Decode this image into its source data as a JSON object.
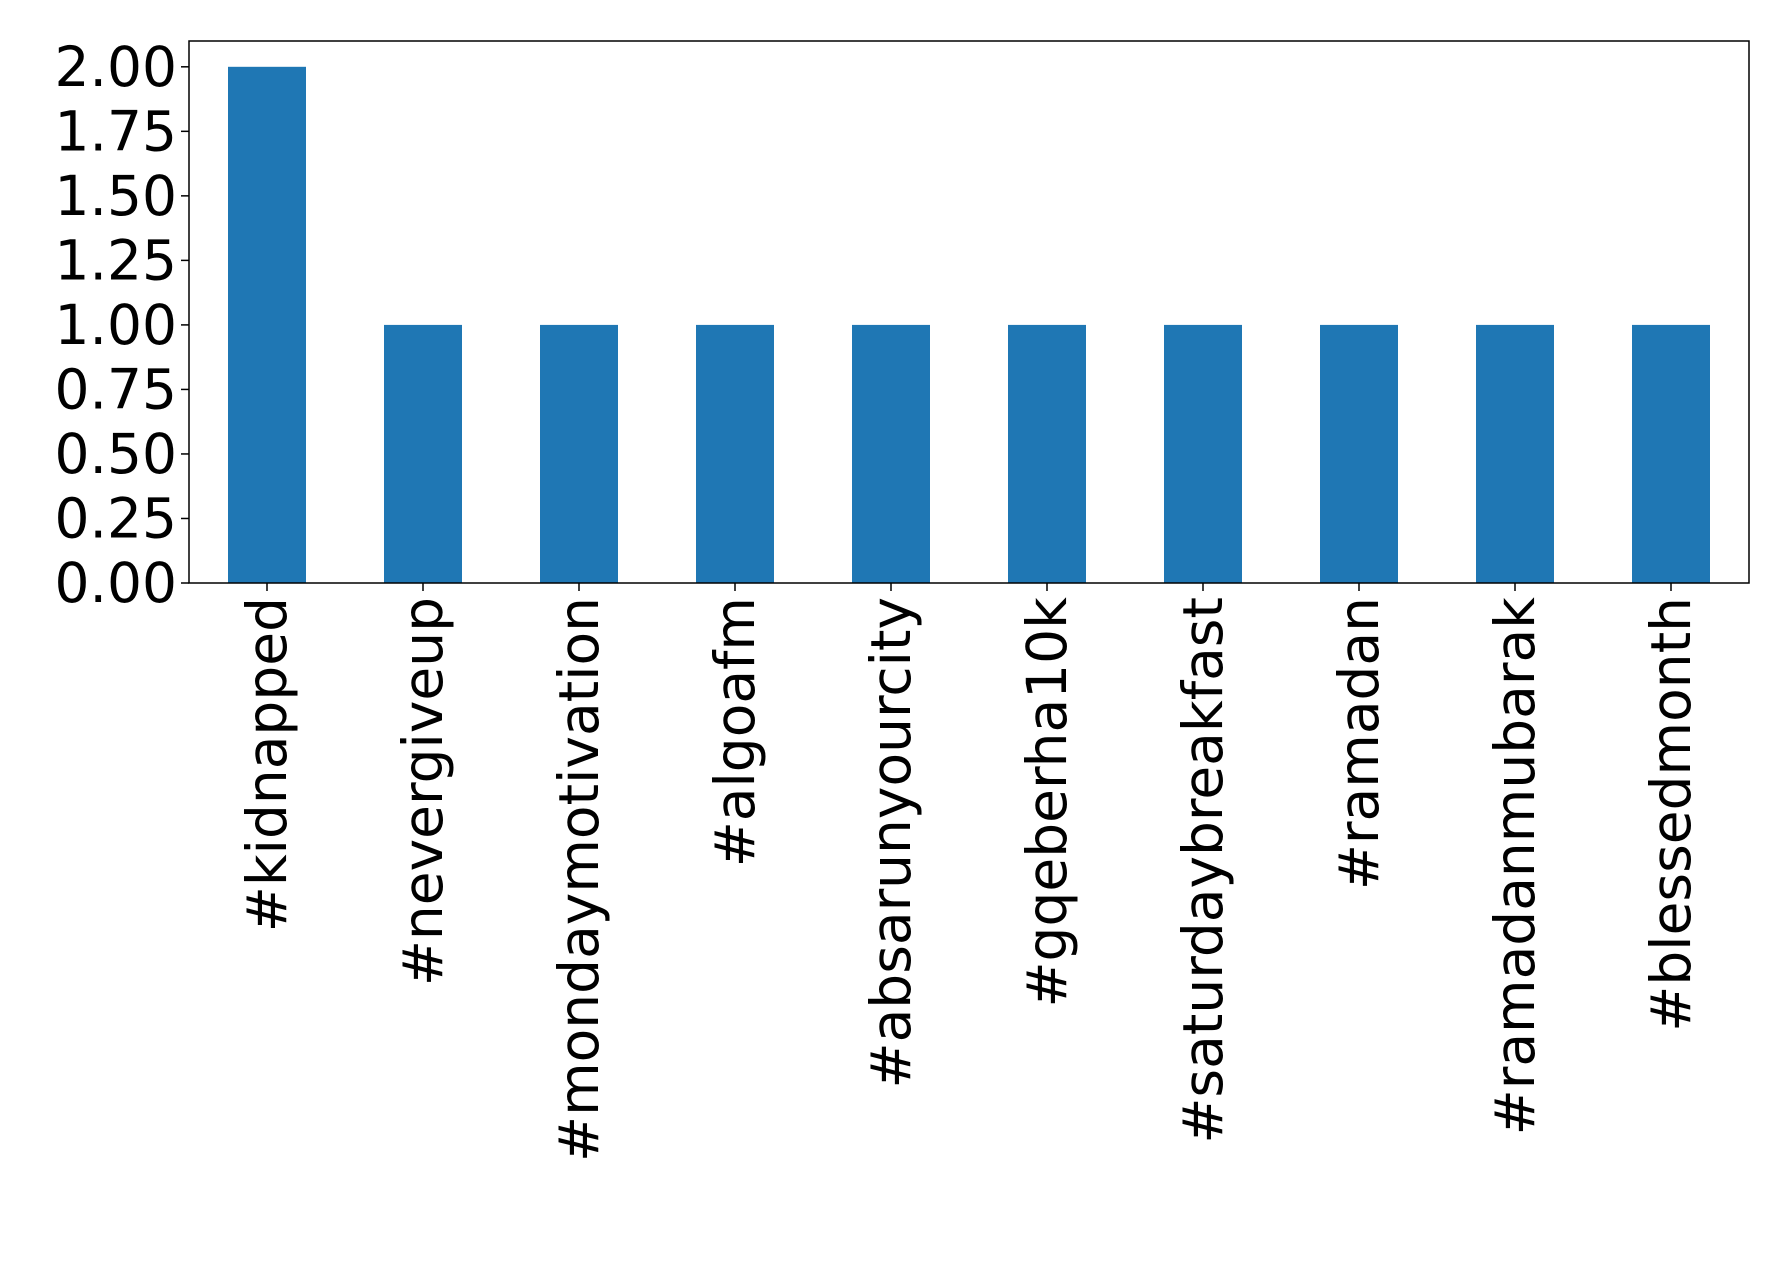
{
  "chart_data": {
    "type": "bar",
    "categories": [
      "#kidnapped",
      "#nevergiveup",
      "#mondaymotivation",
      "#algoafm",
      "#absarunyourcity",
      "#gqeberha10k",
      "#saturdaybreakfast",
      "#ramadan",
      "#ramadanmubarak",
      "#blessedmonth"
    ],
    "values": [
      2,
      1,
      1,
      1,
      1,
      1,
      1,
      1,
      1,
      1
    ],
    "color": "#1f77b4",
    "ylim": [
      0,
      2.1
    ],
    "yticks": [
      {
        "value": 0,
        "label": "0.00"
      },
      {
        "value": 0.25,
        "label": "0.25"
      },
      {
        "value": 0.5,
        "label": "0.50"
      },
      {
        "value": 0.75,
        "label": "0.75"
      },
      {
        "value": 1,
        "label": "1.00"
      },
      {
        "value": 1.25,
        "label": "1.25"
      },
      {
        "value": 1.5,
        "label": "1.50"
      },
      {
        "value": 1.75,
        "label": "1.75"
      },
      {
        "value": 2,
        "label": "2.00"
      }
    ]
  }
}
